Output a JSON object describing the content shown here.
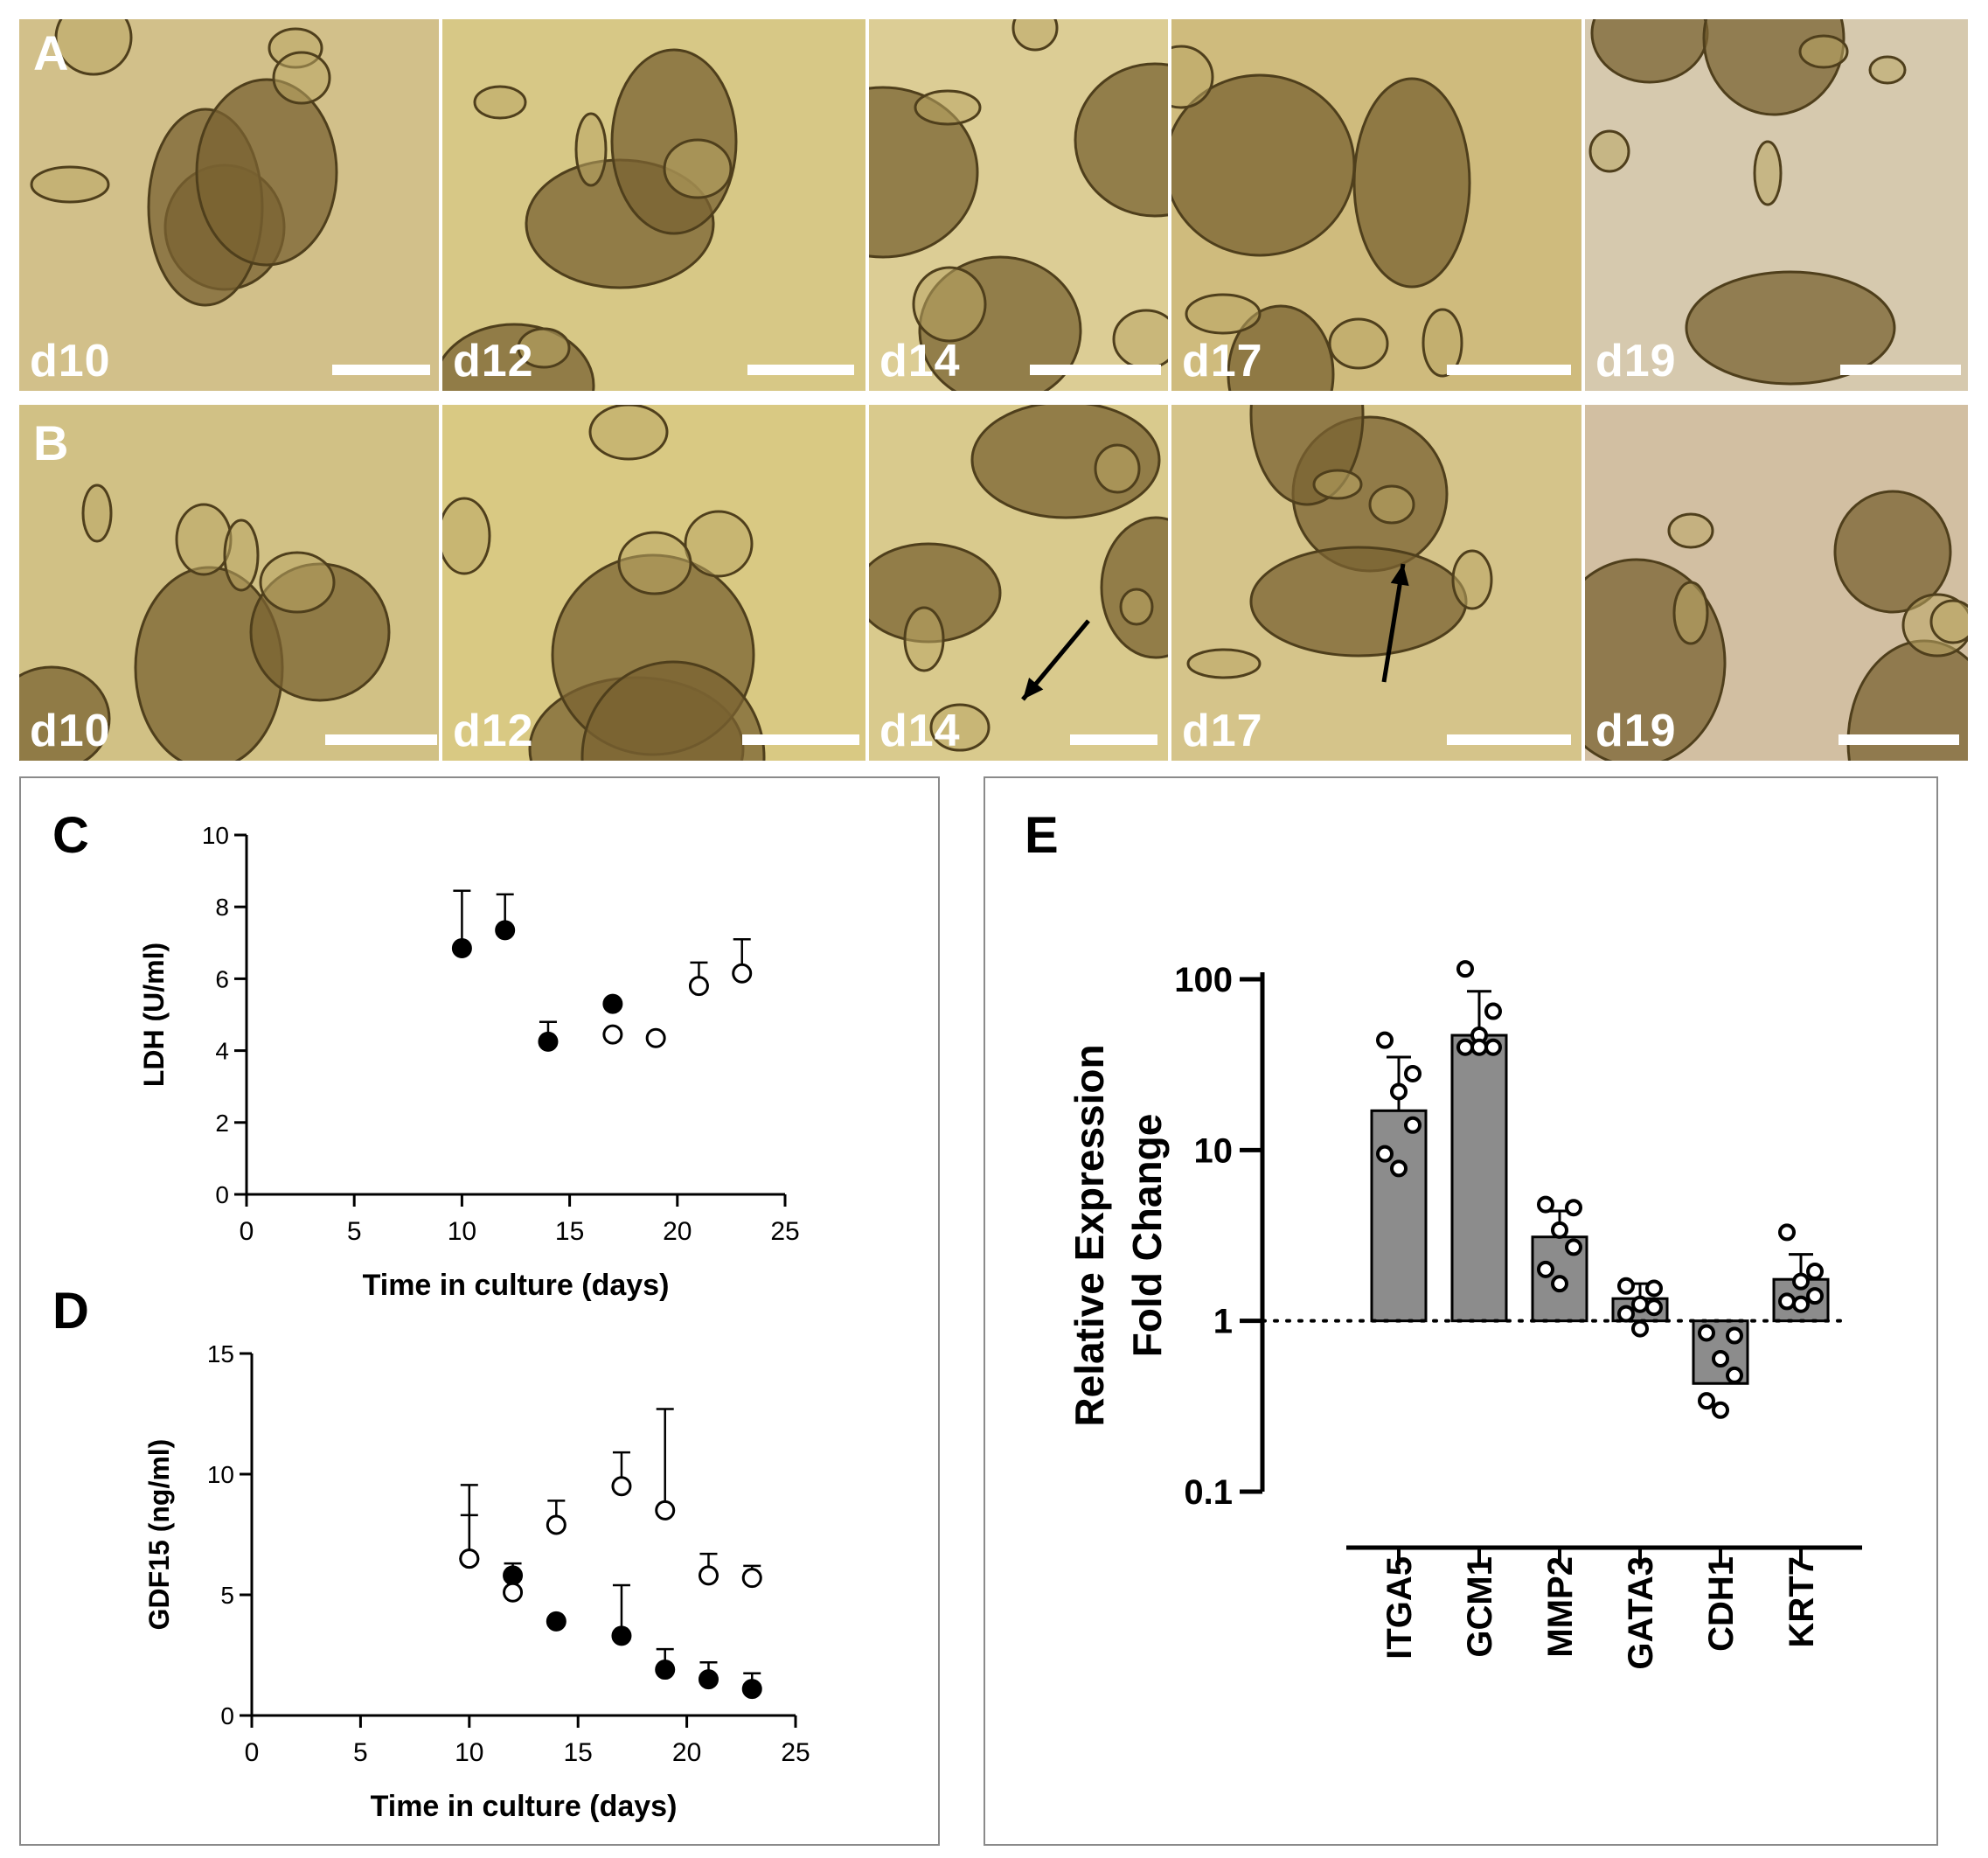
{
  "panel_letters": {
    "a": "A",
    "b": "B",
    "c": "C",
    "d": "D",
    "e": "E"
  },
  "row_a": [
    {
      "day": "d10",
      "tone": "#d2c08a"
    },
    {
      "day": "d12",
      "tone": "#d7c886"
    },
    {
      "day": "d14",
      "tone": "#dccd95"
    },
    {
      "day": "d17",
      "tone": "#cfbb7d"
    },
    {
      "day": "d19",
      "tone": "#d6c9ae"
    }
  ],
  "row_b": [
    {
      "day": "d10",
      "tone": "#d1c185"
    },
    {
      "day": "d12",
      "tone": "#d9c983"
    },
    {
      "day": "d14",
      "tone": "#d9ca8d"
    },
    {
      "day": "d17",
      "tone": "#d5c48a"
    },
    {
      "day": "d19",
      "tone": "#d2bfa2"
    }
  ],
  "colors": {
    "bar_fill": "#8c8c8c",
    "axis": "#000000",
    "dot_closed": "#000000",
    "dot_open": "#ffffff"
  },
  "chart_data": [
    {
      "id": "C",
      "type": "scatter",
      "xlabel": "Time in culture (days)",
      "ylabel": "LDH (U/ml)",
      "xlim": [
        0,
        25
      ],
      "ylim": [
        0,
        10
      ],
      "xticks": [
        "0",
        "5",
        "10",
        "15",
        "20",
        "25"
      ],
      "yticks": [
        "0",
        "2",
        "4",
        "6",
        "8",
        "10"
      ],
      "series": [
        {
          "marker": "filled",
          "points": [
            {
              "x": 10,
              "y": 6.85,
              "err": 1.6
            },
            {
              "x": 12,
              "y": 7.35,
              "err": 1.0
            },
            {
              "x": 14,
              "y": 4.25,
              "err": 0.55
            },
            {
              "x": 17,
              "y": 5.3,
              "err": 0
            }
          ]
        },
        {
          "marker": "open",
          "points": [
            {
              "x": 17,
              "y": 4.45,
              "err": 0
            },
            {
              "x": 19,
              "y": 4.35,
              "err": 0
            },
            {
              "x": 21,
              "y": 5.8,
              "err": 0.65
            },
            {
              "x": 23,
              "y": 6.15,
              "err": 0.95
            }
          ]
        }
      ]
    },
    {
      "id": "D",
      "type": "scatter",
      "xlabel": "Time in culture (days)",
      "ylabel": "GDF15 (ng/ml)",
      "xlim": [
        0,
        25
      ],
      "ylim": [
        0,
        15
      ],
      "xticks": [
        "0",
        "5",
        "10",
        "15",
        "20",
        "25"
      ],
      "yticks": [
        "0",
        "5",
        "10",
        "15"
      ],
      "series": [
        {
          "marker": "filled",
          "points": [
            {
              "x": 10,
              "y": 6.5,
              "err": 3.05
            },
            {
              "x": 12,
              "y": 5.8,
              "err": 0.5
            },
            {
              "x": 14,
              "y": 3.9,
              "err": 0
            },
            {
              "x": 17,
              "y": 3.3,
              "err": 2.1
            },
            {
              "x": 19,
              "y": 1.9,
              "err": 0.85
            },
            {
              "x": 21,
              "y": 1.5,
              "err": 0.7
            },
            {
              "x": 23,
              "y": 1.1,
              "err": 0.65
            }
          ]
        },
        {
          "marker": "open",
          "points": [
            {
              "x": 10,
              "y": 6.5,
              "err": 1.8
            },
            {
              "x": 12,
              "y": 5.1,
              "err": 0
            },
            {
              "x": 14,
              "y": 7.9,
              "err": 1.0
            },
            {
              "x": 17,
              "y": 9.5,
              "err": 1.4
            },
            {
              "x": 19,
              "y": 8.5,
              "err": 4.2
            },
            {
              "x": 21,
              "y": 5.8,
              "err": 0.9
            },
            {
              "x": 23,
              "y": 5.7,
              "err": 0.5
            }
          ]
        }
      ]
    },
    {
      "id": "E",
      "type": "bar",
      "yscale": "log",
      "ylabel": [
        "Relative Expression",
        "Fold Change"
      ],
      "ylim": [
        0.1,
        100
      ],
      "yticks": [
        "0.1",
        "1",
        "10",
        "100"
      ],
      "ytick_values": [
        0.1,
        1,
        10,
        100
      ],
      "reference_line": 1,
      "categories": [
        "ITGA5",
        "GCM1",
        "MMP2",
        "GATA3",
        "CDH1",
        "KRT7"
      ],
      "values": [
        17,
        47,
        3.1,
        1.35,
        0.43,
        1.75
      ],
      "err_upper": [
        35,
        85,
        4.4,
        1.65,
        1.0,
        2.45
      ],
      "points": [
        [
          44,
          28,
          22,
          14,
          9.5,
          7.8
        ],
        [
          115,
          65,
          47,
          40,
          40,
          40
        ],
        [
          4.8,
          4.6,
          3.4,
          2.7,
          2.0,
          1.65
        ],
        [
          1.6,
          1.55,
          1.25,
          1.2,
          1.1,
          0.9
        ],
        [
          0.85,
          0.82,
          0.6,
          0.48,
          0.34,
          0.3
        ],
        [
          3.3,
          1.95,
          1.7,
          1.4,
          1.3,
          1.25
        ]
      ]
    }
  ]
}
